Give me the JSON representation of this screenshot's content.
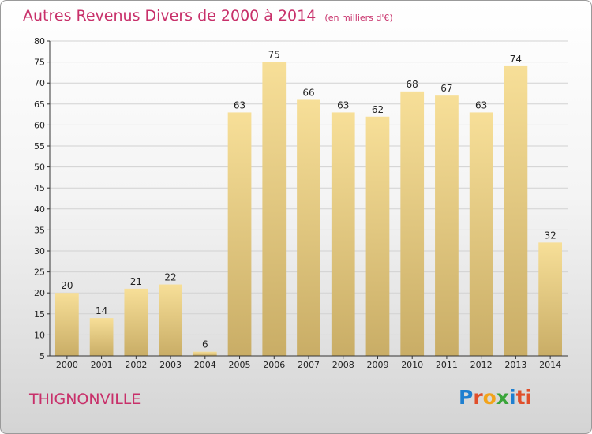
{
  "header": {
    "title": "Autres Revenus Divers de 2000 à 2014",
    "subtitle": "(en milliers d'€)"
  },
  "footer": {
    "city": "THIGNONVILLE",
    "logo_letters": [
      "P",
      "r",
      "o",
      "x",
      "i",
      "ti"
    ]
  },
  "colors": {
    "title": "#c8306a",
    "bar_light": "#f7df98",
    "bar_dark": "#c9ad66",
    "axis": "#333333"
  },
  "chart_data": {
    "type": "bar",
    "title": "Autres Revenus Divers de 2000 à 2014",
    "xlabel": "",
    "ylabel": "",
    "categories": [
      "2000",
      "2001",
      "2002",
      "2003",
      "2004",
      "2005",
      "2006",
      "2007",
      "2008",
      "2009",
      "2010",
      "2011",
      "2012",
      "2013",
      "2014"
    ],
    "values": [
      20,
      14,
      21,
      22,
      6,
      63,
      75,
      66,
      63,
      62,
      68,
      67,
      63,
      74,
      32
    ],
    "ylim": [
      5,
      80
    ],
    "yticks": [
      5,
      10,
      15,
      20,
      25,
      30,
      35,
      40,
      45,
      50,
      55,
      60,
      65,
      70,
      75,
      80
    ],
    "grid": true,
    "legend": "none"
  }
}
